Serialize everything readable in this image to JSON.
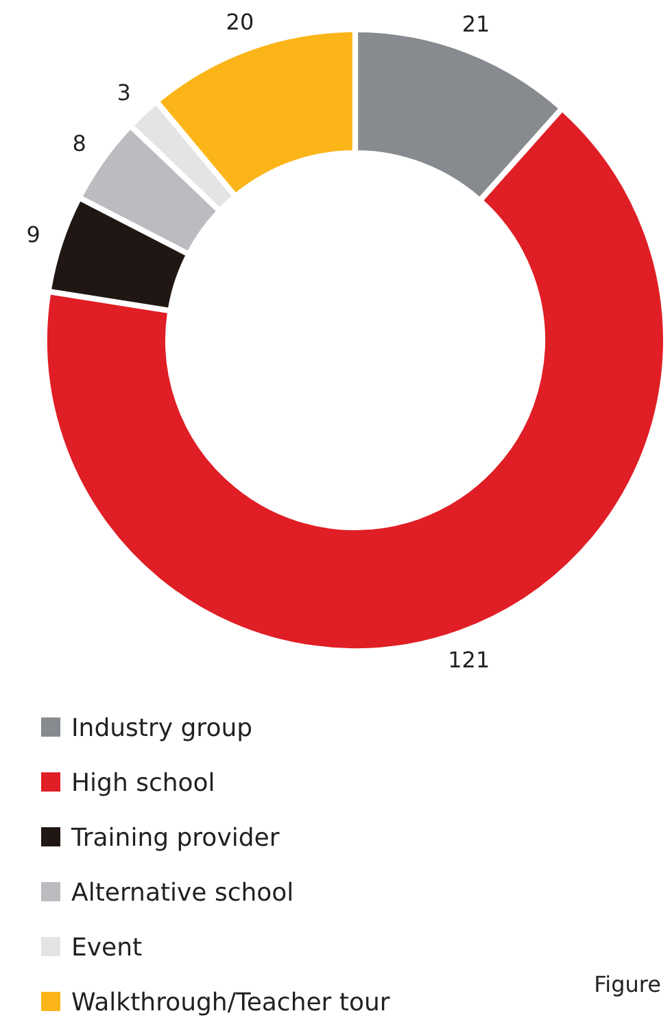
{
  "chart_data": {
    "type": "donut",
    "categories": [
      "Industry group",
      "High school",
      "Training provider",
      "Alternative school",
      "Event",
      "Walkthrough/Teacher tour"
    ],
    "values": [
      21,
      121,
      9,
      8,
      3,
      20
    ],
    "colors": [
      "#878a8e",
      "#e01e25",
      "#201714",
      "#bbbcbf",
      "#e3e4e6",
      "#fcb518"
    ],
    "data_labels": true,
    "legend": "bottom",
    "annotations": [
      "Figure"
    ]
  }
}
